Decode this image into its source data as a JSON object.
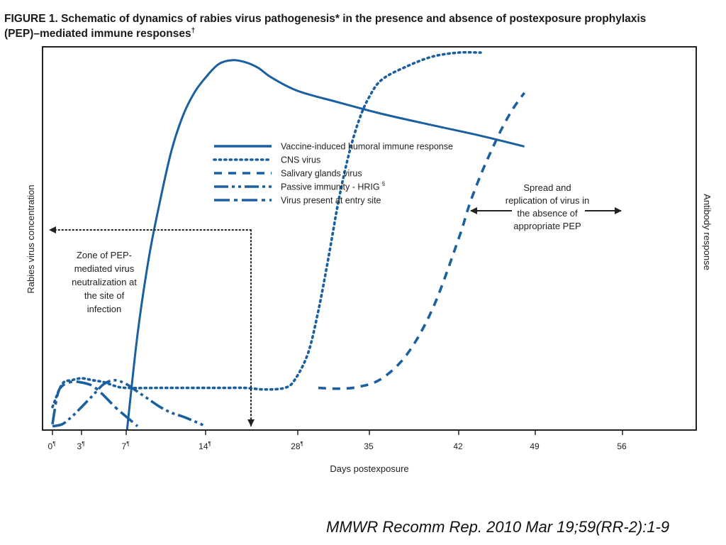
{
  "title": {
    "line1": "FIGURE 1. Schematic of dynamics of rabies virus pathogenesis* in the presence and absence of postexposure prophylaxis",
    "line2": "(PEP)–mediated immune responses",
    "line2_mark": "†"
  },
  "citation": "MMWR Recomm Rep. 2010 Mar 19;59(RR-2):1-9",
  "colors": {
    "series": "#1a5fa0",
    "frame": "#222222",
    "text": "#222222"
  },
  "chart_data": {
    "type": "line",
    "title": "",
    "xlabel": "Days postexposure",
    "ylabel_left": "Rabies virus concentration",
    "ylabel_right": "Antibody response",
    "x_ticks": [
      {
        "label": "0",
        "mark": "¶",
        "value": 0
      },
      {
        "label": "3",
        "mark": "¶",
        "value": 3
      },
      {
        "label": "7",
        "mark": "¶",
        "value": 7
      },
      {
        "label": "14",
        "mark": "¶",
        "value": 14
      },
      {
        "label": "28",
        "mark": "¶",
        "value": 28
      },
      {
        "label": "35",
        "mark": "",
        "value": 35
      },
      {
        "label": "42",
        "mark": "",
        "value": 42
      },
      {
        "label": "49",
        "mark": "",
        "value": 49
      },
      {
        "label": "56",
        "mark": "",
        "value": 56
      }
    ],
    "y_range": [
      0,
      100
    ],
    "grid": false,
    "legend_position": "upper-left-center",
    "series": [
      {
        "name": "Vaccine-induced humoral  immune response",
        "style": "solid",
        "points": [
          [
            7,
            -2
          ],
          [
            8,
            25
          ],
          [
            9,
            45
          ],
          [
            10,
            60
          ],
          [
            11,
            73
          ],
          [
            12,
            82
          ],
          [
            13,
            88
          ],
          [
            14,
            92
          ],
          [
            16,
            95.5
          ],
          [
            18,
            96.5
          ],
          [
            20,
            96
          ],
          [
            22,
            94.5
          ],
          [
            24,
            92
          ],
          [
            28,
            88.5
          ],
          [
            32,
            85.5
          ],
          [
            36,
            82.5
          ],
          [
            40,
            79.5
          ],
          [
            44,
            76.8
          ],
          [
            48,
            74
          ]
        ]
      },
      {
        "name": "CNS virus",
        "style": "dotted",
        "points": [
          [
            0,
            6
          ],
          [
            1,
            12
          ],
          [
            2,
            13
          ],
          [
            3,
            13.5
          ],
          [
            4,
            13
          ],
          [
            5,
            12.5
          ],
          [
            6,
            11.5
          ],
          [
            7,
            11
          ],
          [
            10,
            11
          ],
          [
            14,
            11
          ],
          [
            17,
            11
          ],
          [
            20,
            11
          ],
          [
            23,
            10.6
          ],
          [
            26,
            11
          ],
          [
            27.5,
            13
          ],
          [
            29,
            20
          ],
          [
            30,
            31
          ],
          [
            31,
            45
          ],
          [
            32,
            60
          ],
          [
            33,
            72
          ],
          [
            34,
            81
          ],
          [
            35,
            87
          ],
          [
            36,
            91.5
          ],
          [
            38,
            95
          ],
          [
            40,
            97.5
          ],
          [
            42,
            98.5
          ],
          [
            44,
            98.5
          ]
        ]
      },
      {
        "name": "Salivary glands virus",
        "style": "dashed",
        "points": [
          [
            30,
            11
          ],
          [
            32,
            10.8
          ],
          [
            34,
            11.3
          ],
          [
            36,
            13.5
          ],
          [
            38,
            20
          ],
          [
            40,
            32
          ],
          [
            42,
            50
          ],
          [
            43,
            59
          ],
          [
            44,
            66.5
          ],
          [
            45,
            73
          ],
          [
            46,
            79
          ],
          [
            47,
            84
          ],
          [
            48,
            88
          ]
        ]
      },
      {
        "name": "Passive immunity - HRIG",
        "name_mark": "§",
        "style": "dash-dot-dot",
        "points": [
          [
            0,
            1
          ],
          [
            1,
            1.5
          ],
          [
            2,
            3.5
          ],
          [
            3,
            6
          ],
          [
            4,
            9
          ],
          [
            5,
            12
          ],
          [
            6,
            13
          ],
          [
            7,
            12
          ],
          [
            8,
            10
          ],
          [
            9,
            8
          ],
          [
            10,
            6
          ],
          [
            11,
            4.5
          ],
          [
            12,
            3.5
          ],
          [
            13,
            2.3
          ],
          [
            14,
            1
          ]
        ]
      },
      {
        "name": "Virus present at entry site",
        "style": "dash-dot",
        "points": [
          [
            0,
            1.5
          ],
          [
            0.5,
            9
          ],
          [
            1,
            11.5
          ],
          [
            2,
            12.6
          ],
          [
            3,
            12.4
          ],
          [
            4,
            11.5
          ],
          [
            5,
            9
          ],
          [
            6,
            6
          ],
          [
            7,
            3.5
          ],
          [
            8,
            1
          ]
        ]
      }
    ],
    "annotations": [
      {
        "id": "zone",
        "lines": [
          "Zone of PEP-",
          "mediated virus",
          "neutralization at",
          "the site of",
          "infection"
        ]
      },
      {
        "id": "spread",
        "lines": [
          "Spread and",
          "replication of virus in",
          "the absence of",
          "appropriate PEP"
        ]
      }
    ]
  }
}
